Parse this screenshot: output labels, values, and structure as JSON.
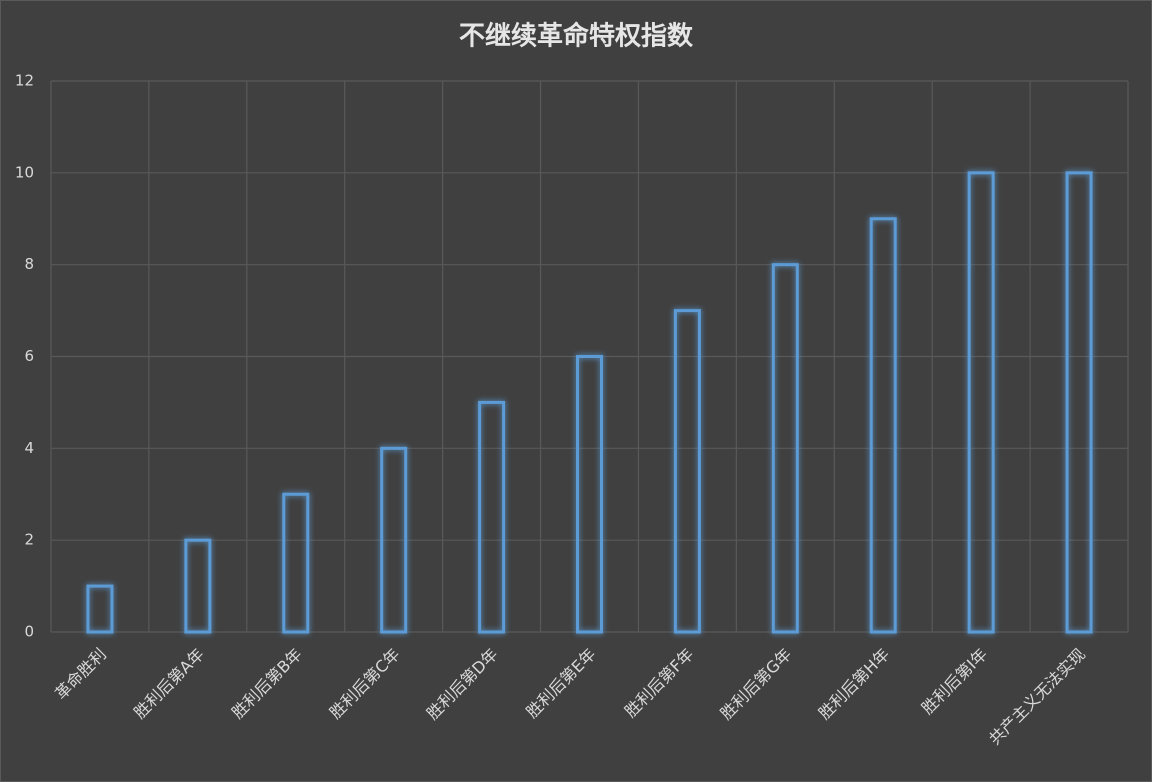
{
  "chart_data": {
    "type": "bar",
    "title": "不继续革命特权指数",
    "categories": [
      "革命胜利",
      "胜利后第A年",
      "胜利后第B年",
      "胜利后第C年",
      "胜利后第D年",
      "胜利后第E年",
      "胜利后第F年",
      "胜利后第G年",
      "胜利后第H年",
      "胜利后第I年",
      "共产主义无法实现"
    ],
    "values": [
      1,
      2,
      3,
      4,
      5,
      6,
      7,
      8,
      9,
      10,
      10
    ],
    "color": "#5b9bd5",
    "ylim": [
      0,
      12
    ],
    "yticks": [
      0,
      2,
      4,
      6,
      8,
      10,
      12
    ],
    "grid": true
  }
}
